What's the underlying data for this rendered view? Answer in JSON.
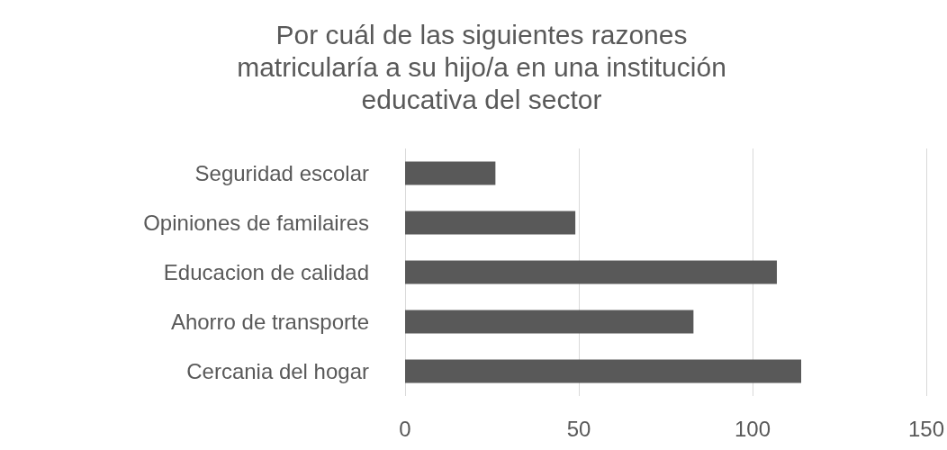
{
  "chart_data": {
    "type": "bar",
    "orientation": "horizontal",
    "title": "Por cuál de las siguientes razones\nmatricularía a su hijo/a en una institución\neducativa del sector",
    "categories": [
      "Seguridad escolar",
      "Opiniones de familaires",
      "Educacion de calidad",
      "Ahorro de transporte",
      "Cercania del hogar"
    ],
    "values": [
      26,
      49,
      107,
      83,
      114
    ],
    "color": "#595959",
    "xlim": [
      0,
      150
    ],
    "xticks": [
      0,
      50,
      100,
      150
    ],
    "grid": "x"
  }
}
